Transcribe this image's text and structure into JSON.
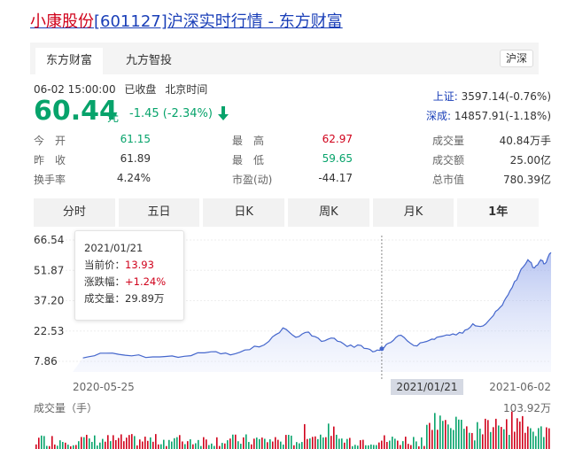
{
  "title": {
    "stock_name": "小康股份",
    "rest": "[601127]沪深实时行情 - 东方财富"
  },
  "source_tabs": [
    {
      "label": "东方财富"
    },
    {
      "label": "九方智投"
    }
  ],
  "market_button": "沪深",
  "timestamp": {
    "datetime": "06-02 15:00:00",
    "status": "已收盘",
    "zone": "北京时间"
  },
  "quote": {
    "price": "60.44",
    "unit": "元",
    "change": "-1.45",
    "change_pct": "(-2.34%)"
  },
  "indices": [
    {
      "name": "上证:",
      "value": "3597.14(-0.76%)"
    },
    {
      "name": "深成:",
      "value": "14857.91(-1.18%)"
    }
  ],
  "stats": {
    "open_label": "今　开",
    "open": "61.15",
    "prev_label": "昨　收",
    "prev": "61.89",
    "turnover_label": "换手率",
    "turnover": "4.24%",
    "high_label": "最　高",
    "high": "62.97",
    "low_label": "最　低",
    "low": "59.65",
    "pe_label": "市盈(动)",
    "pe": "-44.17",
    "volume_label": "成交量",
    "volume": "40.84万手",
    "amount_label": "成交额",
    "amount": "25.00亿",
    "mcap_label": "总市值",
    "mcap": "780.39亿"
  },
  "period_tabs": [
    {
      "label": "分时"
    },
    {
      "label": "五日"
    },
    {
      "label": "日K"
    },
    {
      "label": "周K"
    },
    {
      "label": "月K"
    },
    {
      "label": "1年",
      "active": true
    }
  ],
  "tooltip": {
    "date": "2021/01/21",
    "price_label": "当前价：",
    "price": "13.93",
    "change_label": "涨跌幅：",
    "change": "+1.24%",
    "volume_label": "成交量：",
    "volume": "29.89万"
  },
  "chart_data": {
    "type": "area",
    "y_ticks": [
      "66.54",
      "51.87",
      "37.20",
      "22.53",
      "7.86"
    ],
    "ylim": [
      7.86,
      66.54
    ],
    "x_labels": [
      "2020-05-25",
      "2021/01/21",
      "2021-06-02"
    ],
    "dates": [
      "2020-06-02",
      "2020-06-20",
      "2020-07-10",
      "2020-08-01",
      "2020-08-20",
      "2020-09-10",
      "2020-09-25",
      "2020-10-10",
      "2020-10-25",
      "2020-11-05",
      "2020-11-15",
      "2020-11-25",
      "2020-12-05",
      "2020-12-15",
      "2020-12-25",
      "2021-01-05",
      "2021-01-14",
      "2021-01-21",
      "2021-01-28",
      "2021-02-05",
      "2021-02-15",
      "2021-02-25",
      "2021-03-05",
      "2021-03-15",
      "2021-03-25",
      "2021-04-02",
      "2021-04-10",
      "2021-04-18",
      "2021-04-25",
      "2021-05-01",
      "2021-05-08",
      "2021-05-15",
      "2021-05-20",
      "2021-05-25",
      "2021-05-28",
      "2021-06-02"
    ],
    "prices": [
      9.5,
      11.8,
      10.5,
      10.0,
      10.3,
      12.5,
      11.0,
      13.5,
      17.5,
      24.0,
      19.5,
      22.0,
      17.5,
      19.0,
      15.0,
      15.5,
      12.5,
      13.93,
      17.0,
      20.5,
      15.5,
      17.5,
      19.5,
      20.5,
      21.5,
      26.0,
      25.0,
      30.0,
      35.0,
      42.0,
      50.0,
      57.0,
      53.0,
      57.0,
      55.0,
      60.44
    ],
    "volume_label": "成交量（手）",
    "volume_max": "103.92万"
  },
  "colors": {
    "up": "#d0021b",
    "down": "#07a36b",
    "line": "#4466cc"
  }
}
